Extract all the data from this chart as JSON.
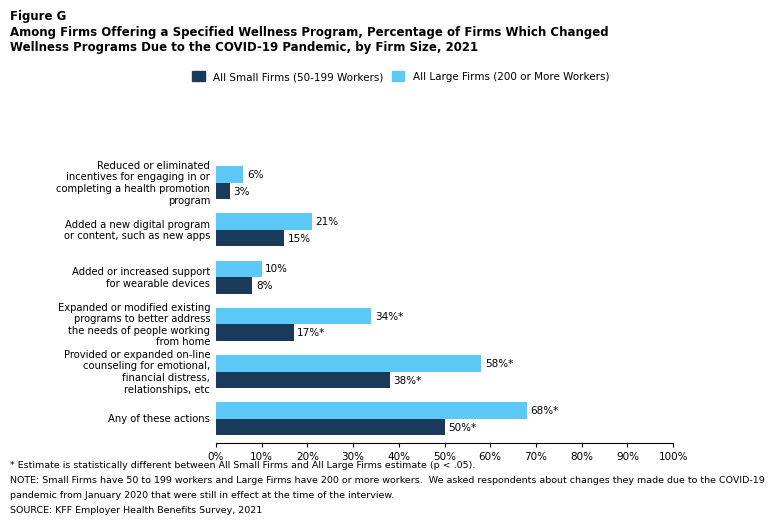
{
  "figure_label": "Figure G",
  "title_line1": "Among Firms Offering a Specified Wellness Program, Percentage of Firms Which Changed",
  "title_line2": "Wellness Programs Due to the COVID-19 Pandemic, by Firm Size, 2021",
  "categories": [
    "Reduced or eliminated\nincentives for engaging in or\ncompleting a health promotion\nprogram",
    "Added a new digital program\nor content, such as new apps",
    "Added or increased support\nfor wearable devices",
    "Expanded or modified existing\nprograms to better address\nthe needs of people working\nfrom home",
    "Provided or expanded on-line\ncounseling for emotional,\nfinancial distress,\nrelationships, etc",
    "Any of these actions"
  ],
  "small_firms": [
    3,
    15,
    8,
    17,
    38,
    50
  ],
  "large_firms": [
    6,
    21,
    10,
    34,
    58,
    68
  ],
  "small_labels": [
    "3%",
    "15%",
    "8%",
    "17%*",
    "38%*",
    "50%*"
  ],
  "large_labels": [
    "6%",
    "21%",
    "10%",
    "34%*",
    "58%*",
    "68%*"
  ],
  "small_color": "#1a3a5c",
  "large_color": "#5bc8f5",
  "legend_small": "All Small Firms (50-199 Workers)",
  "legend_large": "All Large Firms (200 or More Workers)",
  "xlim": [
    0,
    100
  ],
  "xticks": [
    0,
    10,
    20,
    30,
    40,
    50,
    60,
    70,
    80,
    90,
    100
  ],
  "xtick_labels": [
    "0%",
    "10%",
    "20%",
    "30%",
    "40%",
    "50%",
    "60%",
    "70%",
    "80%",
    "90%",
    "100%"
  ],
  "footnote1": "* Estimate is statistically different between All Small Firms and All Large Firms estimate (p < .05).",
  "footnote2": "NOTE: Small Firms have 50 to 199 workers and Large Firms have 200 or more workers.  We asked respondents about changes they made due to the COVID-19",
  "footnote3": "pandemic from January 2020 that were still in effect at the time of the interview.",
  "footnote4": "SOURCE: KFF Employer Health Benefits Survey, 2021",
  "background_color": "#ffffff"
}
